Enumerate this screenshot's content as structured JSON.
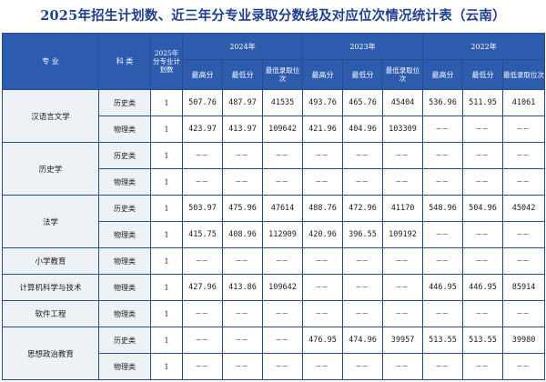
{
  "title": "2025年招生计划数、近三年分专业录取分数线及对应位次情况统计表（云南）",
  "headers": {
    "major": "专  业",
    "type": "科  类",
    "plan": "2025年分专业计划数",
    "years": [
      "2024年",
      "2023年",
      "2022年"
    ],
    "max": "最高分",
    "min": "最低分",
    "rank": "最低录取位次"
  },
  "rows": [
    {
      "major": "汉语言文学",
      "type": "历史类",
      "plan": "1",
      "y2024": [
        "507.76",
        "487.97",
        "41535"
      ],
      "y2023": [
        "493.76",
        "465.76",
        "45404"
      ],
      "y2022": [
        "536.96",
        "511.95",
        "41061"
      ]
    },
    {
      "major": "",
      "type": "物理类",
      "plan": "1",
      "y2024": [
        "423.97",
        "413.97",
        "109642"
      ],
      "y2023": [
        "421.96",
        "404.96",
        "103309"
      ],
      "y2022": [
        "——",
        "——",
        "——"
      ]
    },
    {
      "major": "历史学",
      "type": "历史类",
      "plan": "1",
      "y2024": [
        "——",
        "——",
        "——"
      ],
      "y2023": [
        "——",
        "——",
        "——"
      ],
      "y2022": [
        "——",
        "——",
        "——"
      ]
    },
    {
      "major": "",
      "type": "物理类",
      "plan": "1",
      "y2024": [
        "——",
        "——",
        "——"
      ],
      "y2023": [
        "——",
        "——",
        "——"
      ],
      "y2022": [
        "——",
        "——",
        "——"
      ]
    },
    {
      "major": "法学",
      "type": "历史类",
      "plan": "1",
      "y2024": [
        "503.97",
        "475.96",
        "47614"
      ],
      "y2023": [
        "488.76",
        "472.96",
        "41170"
      ],
      "y2022": [
        "548.96",
        "504.96",
        "45042"
      ]
    },
    {
      "major": "",
      "type": "物理类",
      "plan": "1",
      "y2024": [
        "415.75",
        "408.96",
        "112909"
      ],
      "y2023": [
        "420.96",
        "396.55",
        "109192"
      ],
      "y2022": [
        "——",
        "——",
        "——"
      ]
    },
    {
      "major": "小学教育",
      "type": "物理类",
      "plan": "1",
      "y2024": [
        "——",
        "——",
        "——"
      ],
      "y2023": [
        "——",
        "——",
        "——"
      ],
      "y2022": [
        "——",
        "——",
        "——"
      ]
    },
    {
      "major": "计算机科学与技术",
      "type": "物理类",
      "plan": "1",
      "y2024": [
        "427.96",
        "413.86",
        "109642"
      ],
      "y2023": [
        "——",
        "——",
        "——"
      ],
      "y2022": [
        "446.95",
        "446.95",
        "85914"
      ]
    },
    {
      "major": "软件工程",
      "type": "物理类",
      "plan": "1",
      "y2024": [
        "——",
        "——",
        "——"
      ],
      "y2023": [
        "——",
        "——",
        "——"
      ],
      "y2022": [
        "——",
        "——",
        "——"
      ]
    },
    {
      "major": "思想政治教育",
      "type": "历史类",
      "plan": "1",
      "y2024": [
        "——",
        "——",
        "——"
      ],
      "y2023": [
        "476.95",
        "474.96",
        "39957"
      ],
      "y2022": [
        "513.55",
        "513.55",
        "39980"
      ]
    },
    {
      "major": "",
      "type": "物理类",
      "plan": "1",
      "y2024": [
        "——",
        "——",
        "——"
      ],
      "y2023": [
        "——",
        "——",
        "——"
      ],
      "y2022": [
        "——",
        "——",
        "——"
      ]
    }
  ],
  "spans": [
    2,
    0,
    2,
    0,
    2,
    0,
    1,
    1,
    1,
    2,
    0
  ]
}
